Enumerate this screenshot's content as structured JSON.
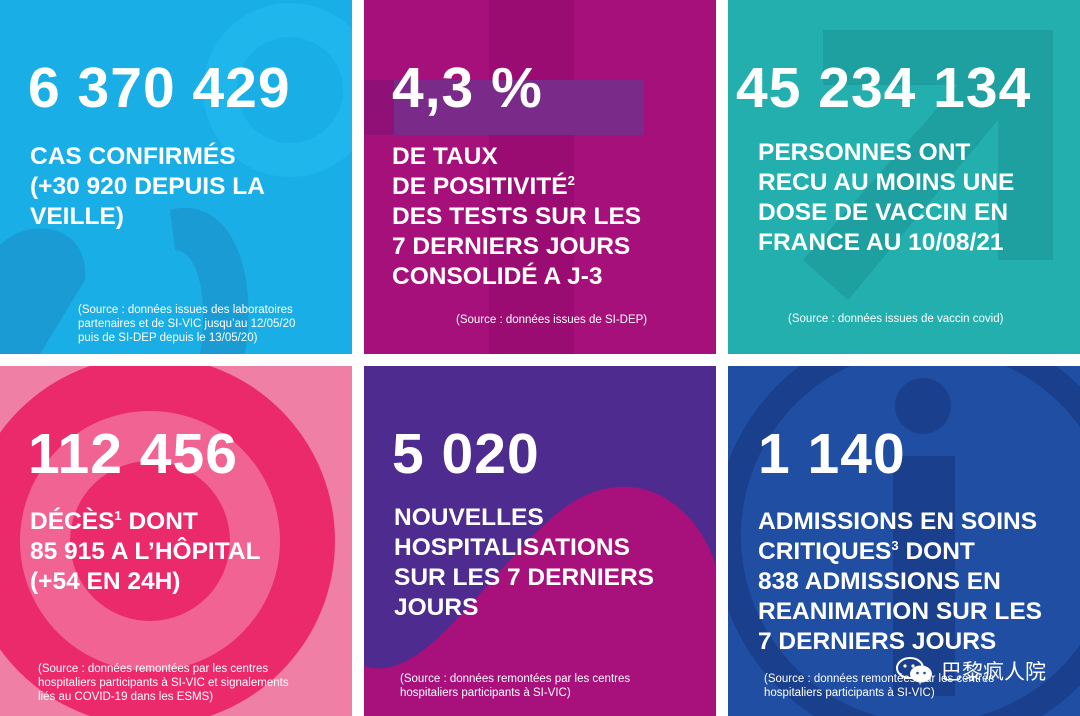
{
  "tiles": [
    {
      "number": "6 370 429",
      "desc": [
        "CAS CONFIRMÉS",
        "(+30 920 DEPUIS LA",
        "VEILLE)"
      ],
      "source": [
        "(Source : données issues des laboratoires",
        "partenaires et de SI-VIC jusqu’au 12/05/20",
        "puis de SI-DEP depuis le 13/05/20)"
      ],
      "color": "#1aaee6"
    },
    {
      "number": "4,3 %",
      "desc": [
        "DE TAUX",
        "DE POSITIVITÉ",
        "DES TESTS SUR LES",
        "7 DERNIERS JOURS",
        "CONSOLIDÉ A J-3"
      ],
      "footnote": "2",
      "source": [
        "(Source : données issues de SI-DEP)"
      ],
      "color": "#a6107a"
    },
    {
      "number": "45 234 134",
      "desc": [
        "PERSONNES ONT",
        "RECU AU MOINS UNE",
        "DOSE DE VACCIN EN",
        "FRANCE AU 10/08/21"
      ],
      "source": [
        "(Source : données issues de vaccin covid)"
      ],
      "color": "#22afad"
    },
    {
      "number": "112 456",
      "desc_first": "DÉCÈS",
      "footnote": "1",
      "desc_first_rest": " DONT",
      "desc": [
        "85 915 A L’HÔPITAL",
        "(+54 EN 24H)"
      ],
      "source": [
        "(Source : données remontées par les centres",
        "hospitaliers participants à SI-VIC et signalements",
        "liés au COVID-19 dans les ESMS)"
      ],
      "color": "#eb2a6c"
    },
    {
      "number": "5 020",
      "desc": [
        "NOUVELLES",
        "HOSPITALISATIONS",
        "SUR LES 7 DERNIERS",
        "JOURS"
      ],
      "source": [
        "(Source : données remontées par les centres",
        "hospitaliers participants à SI-VIC)"
      ],
      "color": "#4e2b8f"
    },
    {
      "number": "1 140",
      "desc_top": "ADMISSIONS EN SOINS",
      "desc_first": "CRITIQUES",
      "footnote": "3",
      "desc_first_rest": " DONT",
      "desc": [
        "838 ADMISSIONS EN",
        "REANIMATION SUR LES",
        "7 DERNIERS JOURS"
      ],
      "source": [
        "(Source : données remontées par les centres",
        "hospitaliers participants à SI-VIC)"
      ],
      "color": "#1f4ea3"
    }
  ],
  "watermark": {
    "text": "巴黎疯人院",
    "icon": "wechat-icon"
  }
}
